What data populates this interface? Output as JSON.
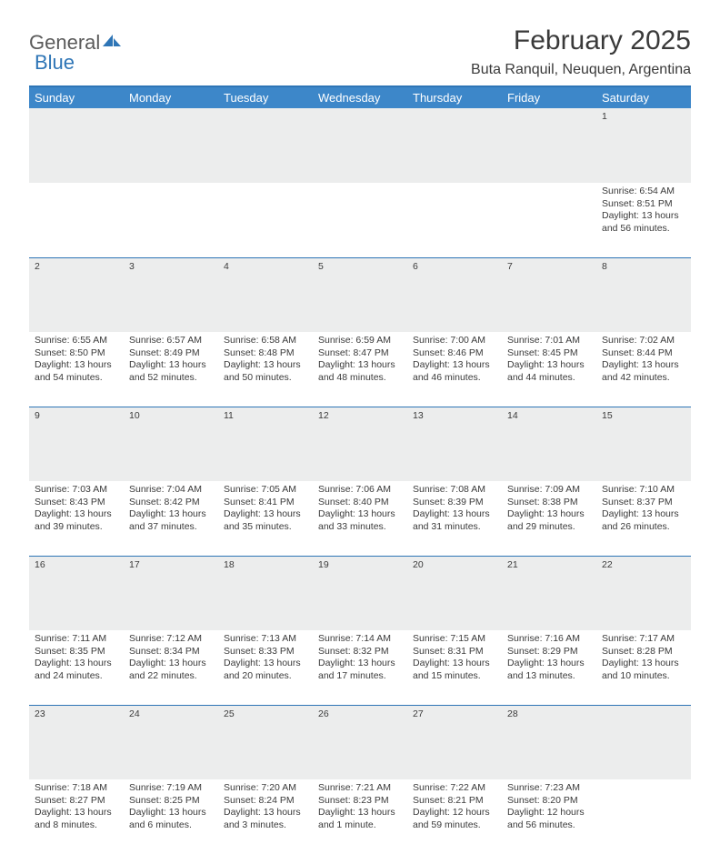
{
  "brand": {
    "part1": "General",
    "part2": "Blue"
  },
  "title": "February 2025",
  "location": "Buta Ranquil, Neuquen, Argentina",
  "colors": {
    "header_bg": "#3d87c9",
    "header_border": "#2e75b6",
    "daynum_bg": "#eceded",
    "text": "#3a3a3a",
    "brand_blue": "#2e75b6"
  },
  "weekdays": [
    "Sunday",
    "Monday",
    "Tuesday",
    "Wednesday",
    "Thursday",
    "Friday",
    "Saturday"
  ],
  "weeks": [
    [
      null,
      null,
      null,
      null,
      null,
      null,
      {
        "n": "1",
        "sr": "Sunrise: 6:54 AM",
        "ss": "Sunset: 8:51 PM",
        "dl": "Daylight: 13 hours and 56 minutes."
      }
    ],
    [
      {
        "n": "2",
        "sr": "Sunrise: 6:55 AM",
        "ss": "Sunset: 8:50 PM",
        "dl": "Daylight: 13 hours and 54 minutes."
      },
      {
        "n": "3",
        "sr": "Sunrise: 6:57 AM",
        "ss": "Sunset: 8:49 PM",
        "dl": "Daylight: 13 hours and 52 minutes."
      },
      {
        "n": "4",
        "sr": "Sunrise: 6:58 AM",
        "ss": "Sunset: 8:48 PM",
        "dl": "Daylight: 13 hours and 50 minutes."
      },
      {
        "n": "5",
        "sr": "Sunrise: 6:59 AM",
        "ss": "Sunset: 8:47 PM",
        "dl": "Daylight: 13 hours and 48 minutes."
      },
      {
        "n": "6",
        "sr": "Sunrise: 7:00 AM",
        "ss": "Sunset: 8:46 PM",
        "dl": "Daylight: 13 hours and 46 minutes."
      },
      {
        "n": "7",
        "sr": "Sunrise: 7:01 AM",
        "ss": "Sunset: 8:45 PM",
        "dl": "Daylight: 13 hours and 44 minutes."
      },
      {
        "n": "8",
        "sr": "Sunrise: 7:02 AM",
        "ss": "Sunset: 8:44 PM",
        "dl": "Daylight: 13 hours and 42 minutes."
      }
    ],
    [
      {
        "n": "9",
        "sr": "Sunrise: 7:03 AM",
        "ss": "Sunset: 8:43 PM",
        "dl": "Daylight: 13 hours and 39 minutes."
      },
      {
        "n": "10",
        "sr": "Sunrise: 7:04 AM",
        "ss": "Sunset: 8:42 PM",
        "dl": "Daylight: 13 hours and 37 minutes."
      },
      {
        "n": "11",
        "sr": "Sunrise: 7:05 AM",
        "ss": "Sunset: 8:41 PM",
        "dl": "Daylight: 13 hours and 35 minutes."
      },
      {
        "n": "12",
        "sr": "Sunrise: 7:06 AM",
        "ss": "Sunset: 8:40 PM",
        "dl": "Daylight: 13 hours and 33 minutes."
      },
      {
        "n": "13",
        "sr": "Sunrise: 7:08 AM",
        "ss": "Sunset: 8:39 PM",
        "dl": "Daylight: 13 hours and 31 minutes."
      },
      {
        "n": "14",
        "sr": "Sunrise: 7:09 AM",
        "ss": "Sunset: 8:38 PM",
        "dl": "Daylight: 13 hours and 29 minutes."
      },
      {
        "n": "15",
        "sr": "Sunrise: 7:10 AM",
        "ss": "Sunset: 8:37 PM",
        "dl": "Daylight: 13 hours and 26 minutes."
      }
    ],
    [
      {
        "n": "16",
        "sr": "Sunrise: 7:11 AM",
        "ss": "Sunset: 8:35 PM",
        "dl": "Daylight: 13 hours and 24 minutes."
      },
      {
        "n": "17",
        "sr": "Sunrise: 7:12 AM",
        "ss": "Sunset: 8:34 PM",
        "dl": "Daylight: 13 hours and 22 minutes."
      },
      {
        "n": "18",
        "sr": "Sunrise: 7:13 AM",
        "ss": "Sunset: 8:33 PM",
        "dl": "Daylight: 13 hours and 20 minutes."
      },
      {
        "n": "19",
        "sr": "Sunrise: 7:14 AM",
        "ss": "Sunset: 8:32 PM",
        "dl": "Daylight: 13 hours and 17 minutes."
      },
      {
        "n": "20",
        "sr": "Sunrise: 7:15 AM",
        "ss": "Sunset: 8:31 PM",
        "dl": "Daylight: 13 hours and 15 minutes."
      },
      {
        "n": "21",
        "sr": "Sunrise: 7:16 AM",
        "ss": "Sunset: 8:29 PM",
        "dl": "Daylight: 13 hours and 13 minutes."
      },
      {
        "n": "22",
        "sr": "Sunrise: 7:17 AM",
        "ss": "Sunset: 8:28 PM",
        "dl": "Daylight: 13 hours and 10 minutes."
      }
    ],
    [
      {
        "n": "23",
        "sr": "Sunrise: 7:18 AM",
        "ss": "Sunset: 8:27 PM",
        "dl": "Daylight: 13 hours and 8 minutes."
      },
      {
        "n": "24",
        "sr": "Sunrise: 7:19 AM",
        "ss": "Sunset: 8:25 PM",
        "dl": "Daylight: 13 hours and 6 minutes."
      },
      {
        "n": "25",
        "sr": "Sunrise: 7:20 AM",
        "ss": "Sunset: 8:24 PM",
        "dl": "Daylight: 13 hours and 3 minutes."
      },
      {
        "n": "26",
        "sr": "Sunrise: 7:21 AM",
        "ss": "Sunset: 8:23 PM",
        "dl": "Daylight: 13 hours and 1 minute."
      },
      {
        "n": "27",
        "sr": "Sunrise: 7:22 AM",
        "ss": "Sunset: 8:21 PM",
        "dl": "Daylight: 12 hours and 59 minutes."
      },
      {
        "n": "28",
        "sr": "Sunrise: 7:23 AM",
        "ss": "Sunset: 8:20 PM",
        "dl": "Daylight: 12 hours and 56 minutes."
      },
      null
    ]
  ]
}
